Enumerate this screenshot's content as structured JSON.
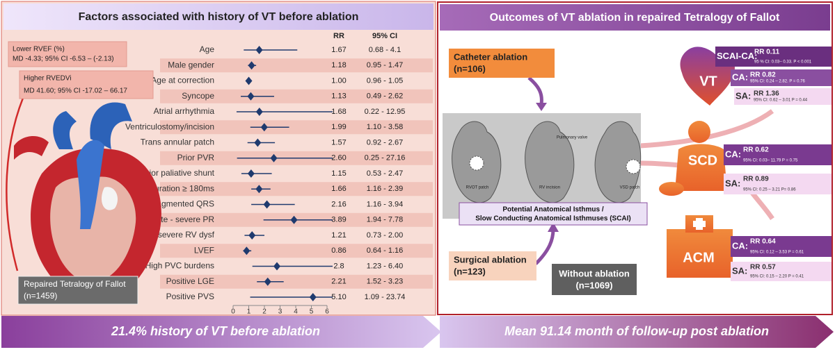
{
  "left": {
    "title": "Factors associated with history of VT  before ablation",
    "notes": [
      {
        "label": "Lower RVEF (%)",
        "text": "MD -4.33; 95% CI -6.53 – (-2.13)"
      },
      {
        "label": "Higher RVEDVi",
        "text": "MD  41.60; 95% CI -17.02 – 66.17"
      }
    ],
    "population": [
      "Repaired Tetralogy of Fallot",
      "(n=1459)"
    ],
    "forest": {
      "columns": [
        "RR",
        "95% CI"
      ],
      "xlim": [
        0,
        6
      ],
      "xticks": [
        0,
        1,
        2,
        3,
        4,
        5,
        6
      ],
      "rows": [
        {
          "factor": "Age",
          "rr": 1.67,
          "rr_label": "1.67",
          "ci": [
            0.68,
            4.1
          ],
          "ci_label": "0.68 - 4.1"
        },
        {
          "factor": "Male gender",
          "rr": 1.18,
          "rr_label": "1.18",
          "ci": [
            0.95,
            1.47
          ],
          "ci_label": "0.95 - 1.47"
        },
        {
          "factor": "Age at correction",
          "rr": 1,
          "rr_label": "1.00",
          "ci": [
            0.96,
            1.05
          ],
          "ci_label": "0.96 - 1.05"
        },
        {
          "factor": "Syncope",
          "rr": 1.13,
          "rr_label": "1.13",
          "ci": [
            0.49,
            2.62
          ],
          "ci_label": "0.49 - 2.62"
        },
        {
          "factor": "Atrial arrhythmia",
          "rr": 1.68,
          "rr_label": "1.68",
          "ci": [
            0.22,
            12.95
          ],
          "ci_label": "0.22 - 12.95"
        },
        {
          "factor": "Ventriculostomy/incision",
          "rr": 1.99,
          "rr_label": "1.99",
          "ci": [
            1.1,
            3.58
          ],
          "ci_label": "1.10 - 3.58"
        },
        {
          "factor": "Trans annular patch",
          "rr": 1.57,
          "rr_label": "1.57",
          "ci": [
            0.92,
            2.67
          ],
          "ci_label": "0.92 - 2.67"
        },
        {
          "factor": "Prior PVR",
          "rr": 2.6,
          "rr_label": "2.60",
          "ci": [
            0.25,
            27.16
          ],
          "ci_label": "0.25 - 27.16"
        },
        {
          "factor": "Prior paliative shunt",
          "rr": 1.15,
          "rr_label": "1.15",
          "ci": [
            0.53,
            2.47
          ],
          "ci_label": "0.53 - 2.47"
        },
        {
          "factor": "QRS duration ≥ 180ms",
          "rr": 1.66,
          "rr_label": "1.66",
          "ci": [
            1.16,
            2.39
          ],
          "ci_label": "1.16 - 2.39"
        },
        {
          "factor": "Fragmented QRS",
          "rr": 2.16,
          "rr_label": "2.16",
          "ci": [
            1.16,
            3.94
          ],
          "ci_label": "1.16 - 3.94"
        },
        {
          "factor": "Moderate - severe PR",
          "rr": 3.89,
          "rr_label": "3.89",
          "ci": [
            1.94,
            7.78
          ],
          "ci_label": "1.94 - 7.78"
        },
        {
          "factor": "Moderate - severe RV dysf",
          "rr": 1.21,
          "rr_label": "1.21",
          "ci": [
            0.73,
            2.0
          ],
          "ci_label": "0.73 - 2.00"
        },
        {
          "factor": "LVEF",
          "rr": 0.86,
          "rr_label": "0.86",
          "ci": [
            0.64,
            1.16
          ],
          "ci_label": "0.64 - 1.16"
        },
        {
          "factor": "High PVC burdens",
          "rr": 2.8,
          "rr_label": "2.8",
          "ci": [
            1.23,
            6.4
          ],
          "ci_label": "1.23 - 6.40"
        },
        {
          "factor": "Positive LGE",
          "rr": 2.21,
          "rr_label": "2.21",
          "ci": [
            1.52,
            3.23
          ],
          "ci_label": "1.52 - 3.23"
        },
        {
          "factor": "Positive PVS",
          "rr": 5.1,
          "rr_label": "5.10",
          "ci": [
            1.09,
            23.74
          ],
          "ci_label": "1.09 - 23.74"
        }
      ]
    },
    "banner": "21.4% history of VT before ablation"
  },
  "right": {
    "title": "Outcomes of VT ablation in repaired Tetralogy of Fallot",
    "catheter": [
      "Catheter ablation",
      "(n=106)"
    ],
    "surgical": [
      "Surgical ablation",
      "(n=123)"
    ],
    "without": [
      "Without ablation",
      "(n=1069)"
    ],
    "isthmus": [
      "Potential Anatomical Isthmus /",
      "Slow Conducting Anatomical Isthmuses (SCAI)"
    ],
    "image_labels": [
      "RVOT patch",
      "RV incision",
      "VSD patch",
      "Pulmonary valve"
    ],
    "outcomes": [
      {
        "name": "VT",
        "rows": [
          {
            "label": "SCAI-CA:",
            "rr": "RR 0.11",
            "ci": "95 % CI: 0.03– 0.33. P < 0.001"
          },
          {
            "label": "CA:",
            "rr": "RR 0.82",
            "ci": "95% CI: 0.24 – 2.82. P = 0.76"
          },
          {
            "label": "SA:",
            "rr": "RR 1.36",
            "ci": "95% CI: 0.62 – 3.01 P = 0.44"
          }
        ]
      },
      {
        "name": "SCD",
        "rows": [
          {
            "label": "CA:",
            "rr": "RR 0.62",
            "ci": "95% CI: 0.03– 11.79 P = 0.75"
          },
          {
            "label": "SA:",
            "rr": "RR 0.89",
            "ci": "95% CI: 0.25 – 3.21 P= 0.86"
          }
        ]
      },
      {
        "name": "ACM",
        "rows": [
          {
            "label": "CA:",
            "rr": "RR 0.64",
            "ci": "95% CI: 0.12 – 3.53 P = 0.61"
          },
          {
            "label": "SA:",
            "rr": "RR 0.57",
            "ci": "95% CI: 0.15 – 2.20 P = 0.41"
          }
        ]
      }
    ],
    "banner": "Mean 91.14 month of follow-up post ablation"
  }
}
